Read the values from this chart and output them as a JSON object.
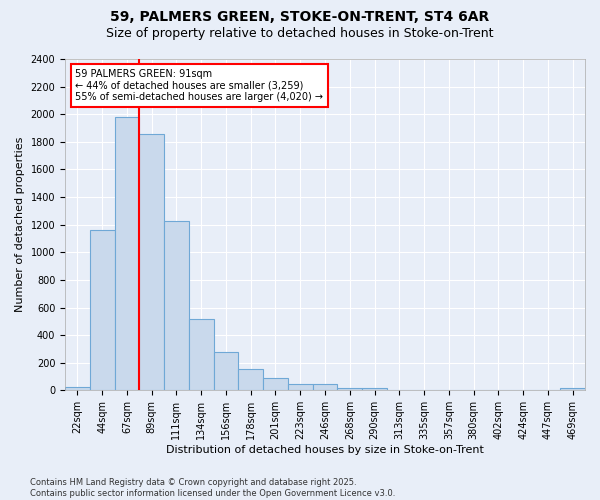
{
  "title1": "59, PALMERS GREEN, STOKE-ON-TRENT, ST4 6AR",
  "title2": "Size of property relative to detached houses in Stoke-on-Trent",
  "xlabel": "Distribution of detached houses by size in Stoke-on-Trent",
  "ylabel": "Number of detached properties",
  "categories": [
    "22sqm",
    "44sqm",
    "67sqm",
    "89sqm",
    "111sqm",
    "134sqm",
    "156sqm",
    "178sqm",
    "201sqm",
    "223sqm",
    "246sqm",
    "268sqm",
    "290sqm",
    "313sqm",
    "335sqm",
    "357sqm",
    "380sqm",
    "402sqm",
    "424sqm",
    "447sqm",
    "469sqm"
  ],
  "values": [
    25,
    1160,
    1980,
    1860,
    1230,
    520,
    275,
    155,
    90,
    45,
    45,
    20,
    18,
    5,
    3,
    2,
    2,
    1,
    1,
    1,
    15
  ],
  "bar_color": "#c9d9ec",
  "bar_edgecolor": "#6fa8d6",
  "vline_index": 3,
  "vline_color": "red",
  "annotation_text": "59 PALMERS GREEN: 91sqm\n← 44% of detached houses are smaller (3,259)\n55% of semi-detached houses are larger (4,020) →",
  "annotation_box_color": "white",
  "annotation_box_edgecolor": "red",
  "ylim": [
    0,
    2400
  ],
  "yticks": [
    0,
    200,
    400,
    600,
    800,
    1000,
    1200,
    1400,
    1600,
    1800,
    2000,
    2200,
    2400
  ],
  "background_color": "#e8eef8",
  "footer_text": "Contains HM Land Registry data © Crown copyright and database right 2025.\nContains public sector information licensed under the Open Government Licence v3.0.",
  "title_fontsize": 10,
  "subtitle_fontsize": 9,
  "axis_label_fontsize": 8,
  "tick_fontsize": 7,
  "annot_fontsize": 7,
  "footer_fontsize": 6
}
